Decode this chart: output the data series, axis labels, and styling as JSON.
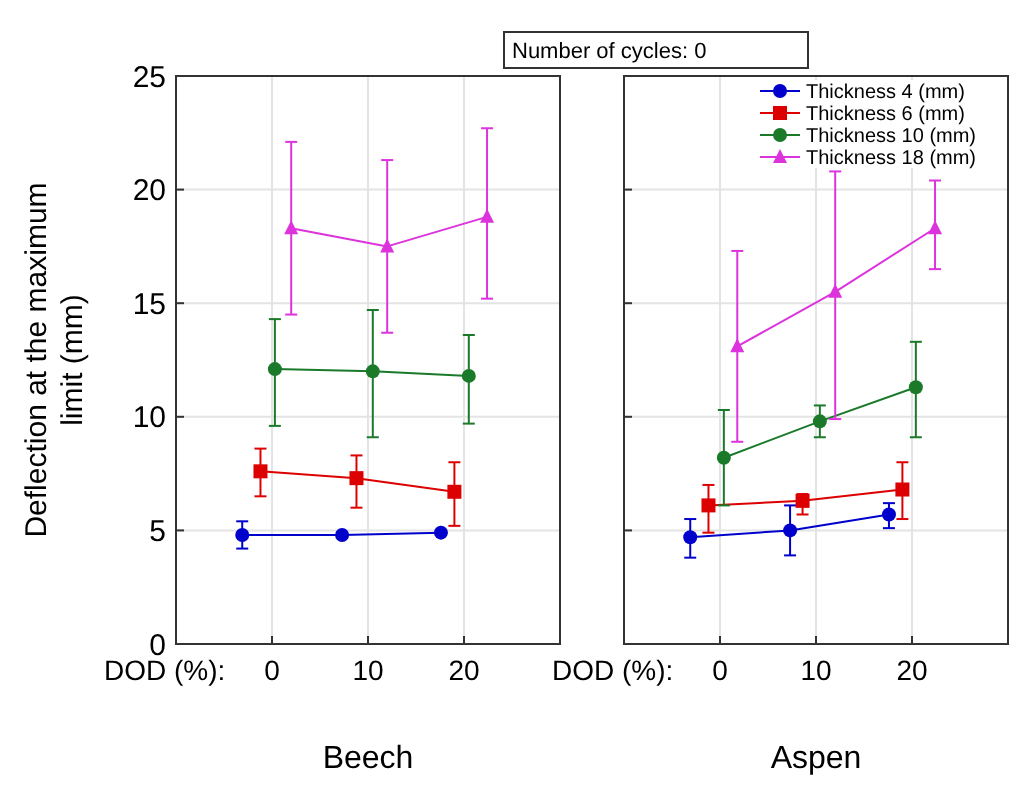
{
  "chart_data": [
    {
      "type": "line",
      "title": "Beech",
      "xlabel": "DOD (%):",
      "ylabel": "Deflection at the maximum limit (mm)",
      "xlim": [
        -10,
        30
      ],
      "xticks": [
        0,
        10,
        20
      ],
      "ylim": [
        0,
        25
      ],
      "yticks": [
        0,
        5,
        10,
        15,
        20,
        25
      ],
      "grid": true,
      "legend": false,
      "series": [
        {
          "color": "#0000cc",
          "marker": "circle",
          "x": [
            -3.1,
            7.3,
            17.6
          ],
          "values": [
            4.8,
            4.8,
            4.9
          ],
          "errors": [
            [
              4.2,
              5.4
            ],
            [
              4.7,
              4.9
            ],
            [
              4.8,
              5.0
            ]
          ]
        },
        {
          "color": "#dd0000",
          "marker": "square",
          "x": [
            -1.2,
            8.8,
            19.0
          ],
          "values": [
            7.6,
            7.3,
            6.7
          ],
          "errors": [
            [
              6.5,
              8.6
            ],
            [
              6.0,
              8.3
            ],
            [
              5.2,
              8.0
            ]
          ]
        },
        {
          "color": "#1a7a2a",
          "marker": "circle",
          "x": [
            0.3,
            10.5,
            20.5
          ],
          "values": [
            12.1,
            12.0,
            11.8
          ],
          "errors": [
            [
              9.6,
              14.3
            ],
            [
              9.1,
              14.7
            ],
            [
              9.7,
              13.6
            ]
          ]
        },
        {
          "color": "#dd33dd",
          "marker": "triangle",
          "x": [
            2.0,
            12.0,
            22.4
          ],
          "values": [
            18.3,
            17.5,
            18.8
          ],
          "errors": [
            [
              14.5,
              22.1
            ],
            [
              13.7,
              21.3
            ],
            [
              15.2,
              22.7
            ]
          ]
        }
      ]
    },
    {
      "type": "line",
      "title": "Aspen",
      "xlabel": "DOD (%):",
      "legend_title": "Number of cycles: 0",
      "xlim": [
        -10,
        30
      ],
      "xticks": [
        0,
        10,
        20
      ],
      "ylim": [
        0,
        25
      ],
      "yticks": [
        0,
        5,
        10,
        15,
        20,
        25
      ],
      "tick_labels": "x",
      "grid": true,
      "legend": "top right",
      "series": [
        {
          "name": "Thickness 4 (mm)",
          "color": "#0000cc",
          "marker": "circle",
          "x": [
            -3.1,
            7.3,
            17.6
          ],
          "values": [
            4.7,
            5.0,
            5.7
          ],
          "errors": [
            [
              3.8,
              5.5
            ],
            [
              3.9,
              6.1
            ],
            [
              5.1,
              6.2
            ]
          ]
        },
        {
          "name": "Thickness 6 (mm)",
          "color": "#dd0000",
          "marker": "square",
          "x": [
            -1.2,
            8.6,
            19.0
          ],
          "values": [
            6.1,
            6.3,
            6.8
          ],
          "errors": [
            [
              4.9,
              7.0
            ],
            [
              5.7,
              6.6
            ],
            [
              5.5,
              8.0
            ]
          ]
        },
        {
          "name": "Thickness 10 (mm)",
          "color": "#1a7a2a",
          "marker": "circle",
          "x": [
            0.4,
            10.4,
            20.4
          ],
          "values": [
            8.2,
            9.8,
            11.3
          ],
          "errors": [
            [
              6.1,
              10.3
            ],
            [
              9.1,
              10.5
            ],
            [
              9.1,
              13.3
            ]
          ]
        },
        {
          "name": "Thickness 18 (mm)",
          "color": "#dd33dd",
          "marker": "triangle",
          "x": [
            1.8,
            12.0,
            22.4
          ],
          "values": [
            13.1,
            15.5,
            18.3
          ],
          "errors": [
            [
              8.9,
              17.3
            ],
            [
              9.9,
              20.8
            ],
            [
              16.5,
              20.4
            ]
          ]
        }
      ]
    }
  ]
}
